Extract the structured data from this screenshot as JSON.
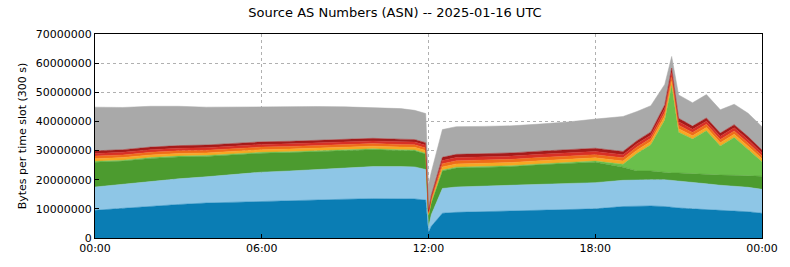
{
  "chart_data": {
    "type": "area",
    "title": "Source AS Numbers (ASN) -- 2025-01-16 UTC",
    "y_label": "Bytes per time slot (300 s)",
    "stacked": true,
    "grid": true,
    "x": [
      0,
      1,
      2,
      3,
      4,
      5,
      6,
      7,
      8,
      9,
      10,
      11,
      11.5,
      11.9,
      12,
      12.1,
      12.5,
      13,
      14,
      15,
      16,
      17,
      18,
      19,
      19.5,
      20,
      20.5,
      20.75,
      21,
      21.5,
      22,
      22.5,
      23,
      23.5,
      24
    ],
    "xlim": [
      0,
      24
    ],
    "xticks": [
      {
        "value": 0,
        "label": "00:00"
      },
      {
        "value": 6,
        "label": "06:00"
      },
      {
        "value": 12,
        "label": "12:00"
      },
      {
        "value": 18,
        "label": "18:00"
      },
      {
        "value": 24,
        "label": "00:00"
      }
    ],
    "ylim": [
      0,
      70000000
    ],
    "yticks": [
      0,
      10000000,
      20000000,
      30000000,
      40000000,
      50000000,
      60000000,
      70000000
    ],
    "series": [
      {
        "color": "#0a7db4",
        "values": [
          9500000,
          10200000,
          11000000,
          11500000,
          12000000,
          12300000,
          12600000,
          12800000,
          13000000,
          13300000,
          13500000,
          13500000,
          13400000,
          13000000,
          2000000,
          4000000,
          8500000,
          8800000,
          9000000,
          9200000,
          9500000,
          9800000,
          10000000,
          10800000,
          11000000,
          11000000,
          10800000,
          10500000,
          10300000,
          10000000,
          9800000,
          9500000,
          9200000,
          9000000,
          8500000
        ]
      },
      {
        "color": "#8ec6e6",
        "values": [
          8000000,
          8200000,
          8500000,
          8800000,
          9000000,
          9500000,
          10000000,
          10200000,
          10500000,
          10800000,
          11000000,
          11000000,
          11000000,
          10500000,
          1500000,
          4000000,
          8500000,
          8700000,
          8800000,
          8800000,
          8900000,
          9000000,
          9000000,
          9000000,
          9000000,
          9000000,
          9200000,
          9300000,
          9200000,
          9000000,
          8800000,
          8600000,
          8500000,
          8400000,
          8200000
        ]
      },
      {
        "color": "#4c9b2f",
        "values": [
          8500000,
          8000000,
          7800000,
          7500000,
          7000000,
          6800000,
          6500000,
          6300000,
          6200000,
          6000000,
          5800000,
          5500000,
          5500000,
          5300000,
          4000000,
          4000000,
          6000000,
          6500000,
          6500000,
          6500000,
          6700000,
          6800000,
          7000000,
          4500000,
          3000000,
          3000000,
          2500000,
          2500000,
          2800000,
          3000000,
          3200000,
          3500000,
          3800000,
          4000000,
          4500000
        ]
      },
      {
        "color": "#6abf4b",
        "values": [
          300000,
          300000,
          300000,
          300000,
          300000,
          300000,
          300000,
          300000,
          300000,
          300000,
          300000,
          300000,
          300000,
          300000,
          200000,
          200000,
          300000,
          300000,
          300000,
          300000,
          300000,
          300000,
          400000,
          1000000,
          6000000,
          9000000,
          18000000,
          30000000,
          14000000,
          12000000,
          15000000,
          10000000,
          13000000,
          9000000,
          5000000
        ]
      },
      {
        "color": "#f7a823",
        "values": [
          900000,
          900000,
          900000,
          900000,
          900000,
          900000,
          900000,
          900000,
          900000,
          900000,
          900000,
          900000,
          900000,
          900000,
          400000,
          600000,
          1100000,
          1100000,
          1100000,
          1100000,
          1100000,
          1100000,
          1100000,
          1100000,
          1100000,
          1100000,
          1300000,
          1500000,
          1200000,
          1100000,
          1100000,
          1100000,
          1100000,
          1100000,
          1000000
        ]
      },
      {
        "color": "#ef6c1a",
        "values": [
          900000,
          900000,
          900000,
          900000,
          900000,
          900000,
          900000,
          900000,
          900000,
          900000,
          900000,
          900000,
          900000,
          900000,
          400000,
          600000,
          1100000,
          1100000,
          1100000,
          1100000,
          1100000,
          1100000,
          1100000,
          1100000,
          1100000,
          1100000,
          1300000,
          1500000,
          1200000,
          1100000,
          1100000,
          1100000,
          1100000,
          1100000,
          1000000
        ]
      },
      {
        "color": "#d73027",
        "values": [
          900000,
          900000,
          900000,
          900000,
          900000,
          900000,
          900000,
          900000,
          900000,
          900000,
          900000,
          900000,
          900000,
          900000,
          400000,
          600000,
          1100000,
          1100000,
          1100000,
          1100000,
          1100000,
          1100000,
          1100000,
          1100000,
          1100000,
          1100000,
          1300000,
          1500000,
          1200000,
          1100000,
          1100000,
          1100000,
          1100000,
          1100000,
          1000000
        ]
      },
      {
        "color": "#a51b1b",
        "values": [
          900000,
          900000,
          900000,
          900000,
          900000,
          900000,
          900000,
          900000,
          900000,
          900000,
          900000,
          900000,
          900000,
          900000,
          400000,
          600000,
          1100000,
          1100000,
          1100000,
          1100000,
          1100000,
          1100000,
          1100000,
          1100000,
          1100000,
          1100000,
          1300000,
          1500000,
          1200000,
          1100000,
          1100000,
          1100000,
          1100000,
          1100000,
          1000000
        ]
      },
      {
        "color": "#a9a9a9",
        "values": [
          15000000,
          14500000,
          14000000,
          13500000,
          13000000,
          12500000,
          12000000,
          11800000,
          11500000,
          11000000,
          10500000,
          10500000,
          10000000,
          10000000,
          9000000,
          8000000,
          9500000,
          9500000,
          9300000,
          9300000,
          9300000,
          9500000,
          10000000,
          12000000,
          10000000,
          9000000,
          7000000,
          4000000,
          8000000,
          8000000,
          8000000,
          8000000,
          7000000,
          8000000,
          8000000
        ]
      }
    ]
  }
}
